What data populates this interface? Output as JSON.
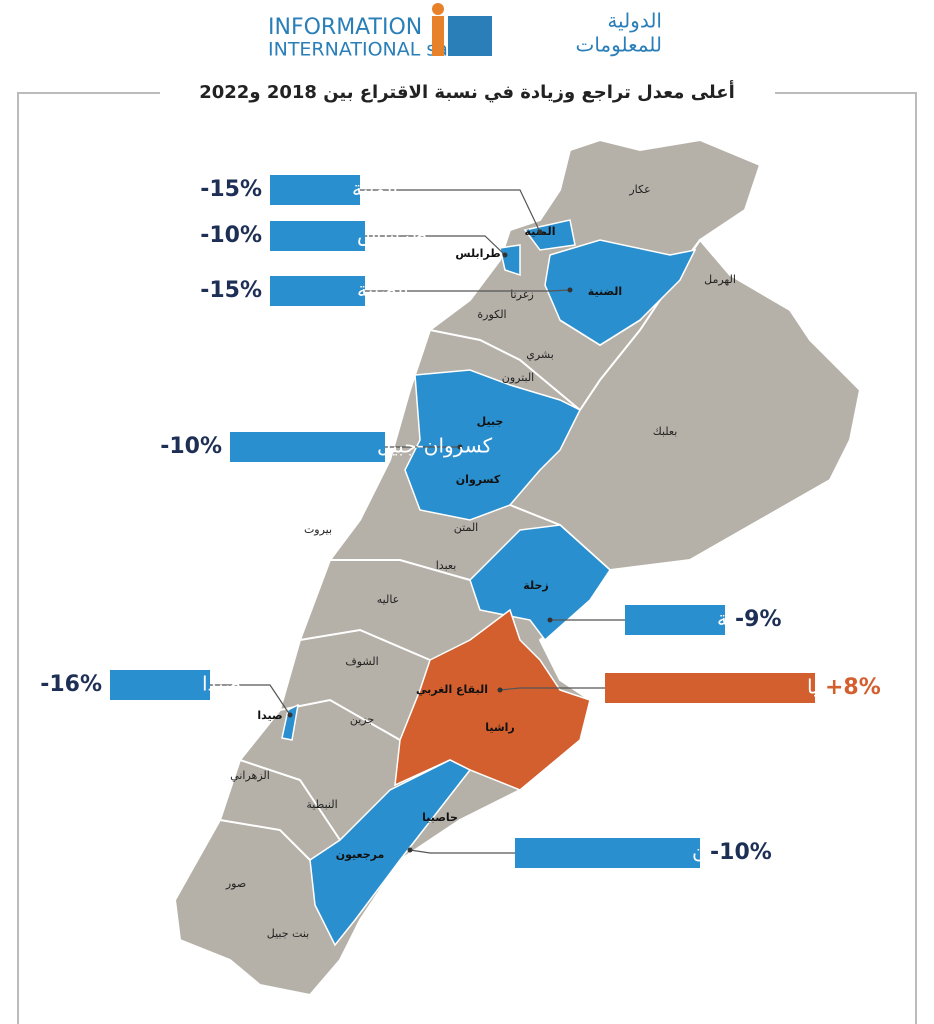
{
  "header": {
    "logo_en_line1": "INFORMATION",
    "logo_en_line2": "INTERNATIONAL sal",
    "logo_ar_line1": "الدولية",
    "logo_ar_line2": "للمعلومات"
  },
  "title": "أعلى معدل تراجع وزيادة في نسبة الاقتراع بين 2018 و2022",
  "callouts": [
    {
      "district": "المنية",
      "change": "-15%",
      "color": "#2a8fcf"
    },
    {
      "district": "طرابلس",
      "change": "-10%",
      "color": "#2a8fcf"
    },
    {
      "district": "الضنية",
      "change": "-15%",
      "color": "#2a8fcf"
    },
    {
      "district": "كسروان-جبيل",
      "change": "-10%",
      "color": "#2a8fcf"
    },
    {
      "district": "زحلة",
      "change": "-9%",
      "color": "#2a8fcf"
    },
    {
      "district": "البقاع الغربي-راشيا",
      "change": "+8%",
      "color": "#d35f2f"
    },
    {
      "district": "حاصبيا-مرجعيون",
      "change": "-10%",
      "color": "#2a8fcf"
    },
    {
      "district": "صيدا",
      "change": "-16%",
      "color": "#2a8fcf"
    }
  ],
  "map_labels": [
    "عكار",
    "المنية",
    "طرابلس",
    "الضنية",
    "الهرمل",
    "زغرتا",
    "الكورة",
    "بشري",
    "البترون",
    "جبيل",
    "كسروان",
    "بعلبك",
    "بيروت",
    "المتن",
    "بعبدا",
    "عاليه",
    "زحلة",
    "الشوف",
    "البقاع الغربي",
    "راشيا",
    "صيدا",
    "جزين",
    "الزهراني",
    "النبطية",
    "حاصبيا",
    "مرجعيون",
    "صور",
    "بنت جبيل"
  ]
}
